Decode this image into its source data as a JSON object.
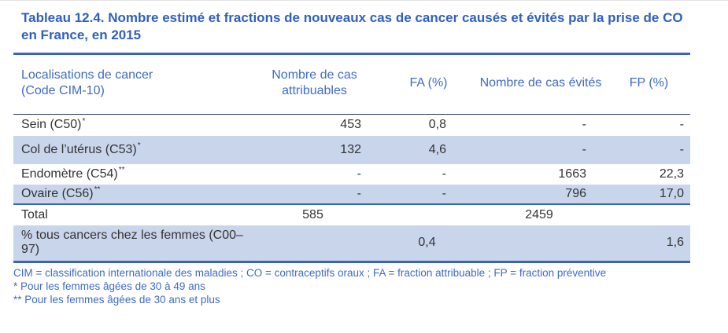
{
  "title": "Tableau 12.4. Nombre estimé et fractions de nouveaux cas de cancer causés et évités par la prise de CO en France, en 2015",
  "colors": {
    "accent_blue": "#3060BE",
    "header_blue": "#3E6BC6",
    "rule_blue": "#3A64B8",
    "dark_rule": "#1F3B66",
    "row_shade": "#C8D5EB",
    "body_text": "#333333"
  },
  "table": {
    "columns": [
      {
        "label": "Localisations de cancer\n(Code CIM-10)"
      },
      {
        "label": "Nombre de cas attribuables"
      },
      {
        "label": "FA (%)"
      },
      {
        "label": "Nombre de cas évités"
      },
      {
        "label": "FP (%)"
      }
    ],
    "rows": [
      {
        "label": "Sein (C50)",
        "sup": "*",
        "attribuables": "453",
        "fa": "0,8",
        "evites": "-",
        "fp": "-"
      },
      {
        "label": "Col de l’utérus (C53)",
        "sup": "*",
        "attribuables": "132",
        "fa": "4,6",
        "evites": "-",
        "fp": "-"
      },
      {
        "label": "Endomètre (C54)",
        "sup": "**",
        "attribuables": "-",
        "fa": "-",
        "evites": "1663",
        "fp": "22,3"
      },
      {
        "label": "Ovaire (C56)",
        "sup": "**",
        "attribuables": "-",
        "fa": "-",
        "evites": "796",
        "fp": "17,0"
      },
      {
        "label": "Total",
        "sup": "",
        "attribuables": "585",
        "fa": "",
        "evites": "2459",
        "fp": ""
      },
      {
        "label": "% tous cancers chez les femmes (C00–97)",
        "sup": "",
        "attribuables": "",
        "fa": "0,4",
        "evites": "",
        "fp": "1,6"
      }
    ]
  },
  "footnotes": [
    "CIM = classification internationale des maladies ; CO = contraceptifs oraux ; FA = fraction attribuable ; FP = fraction préventive",
    "* Pour les femmes âgées de 30 à 49 ans",
    "** Pour les femmes âgées de 30 ans et plus"
  ]
}
